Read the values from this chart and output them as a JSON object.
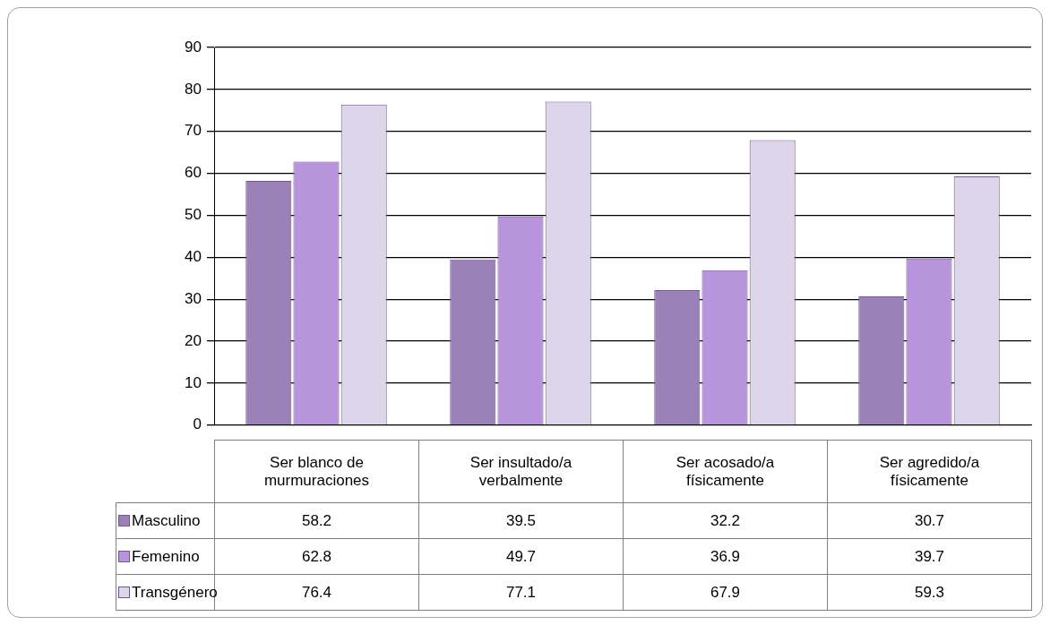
{
  "chart_data": {
    "type": "bar",
    "categories": [
      "Ser blanco de murmuraciones",
      "Ser insultado/a verbalmente",
      "Ser acosado/a físicamente",
      "Ser agredido/a físicamente"
    ],
    "series": [
      {
        "name": "Masculino",
        "color": "#9a82b8",
        "values": [
          58.2,
          39.5,
          32.2,
          30.7
        ]
      },
      {
        "name": "Femenino",
        "color": "#b894dc",
        "values": [
          62.8,
          49.7,
          36.9,
          39.7
        ]
      },
      {
        "name": "Transgénero",
        "color": "#ddd5ea",
        "values": [
          76.4,
          77.1,
          67.9,
          59.3
        ]
      }
    ],
    "ylim": [
      0,
      90
    ],
    "yticks": [
      0,
      10,
      20,
      30,
      40,
      50,
      60,
      70,
      80,
      90
    ],
    "grid": "y",
    "legend": "bottom",
    "data_labels": true
  }
}
